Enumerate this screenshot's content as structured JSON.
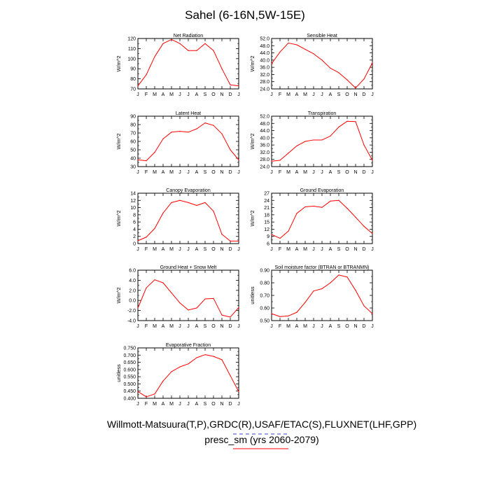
{
  "figure": {
    "title": "Sahel (6-16N,5W-15E)",
    "footer_line1": "Willmott-Matsuura(T,P),GRDC(R),USAF/ETAC(S),FLUXNET(LHF,GPP)",
    "footer_line2": "presc_sm (yrs 2060-2079)",
    "line_color": "#ff0000",
    "dash_color": "#3344cc"
  },
  "chart_data": [
    {
      "type": "line",
      "title": "Net Radiation",
      "ylabel": "W/m^2",
      "categories": [
        "J",
        "F",
        "M",
        "A",
        "M",
        "J",
        "J",
        "A",
        "S",
        "O",
        "N",
        "D",
        "J"
      ],
      "ylim": [
        70,
        120
      ],
      "yticks": [
        "70",
        "80",
        "90",
        "100",
        "110",
        "120"
      ],
      "series": [
        {
          "name": "presc_sm",
          "values": [
            73,
            84,
            102,
            115,
            119,
            115,
            108,
            108,
            115,
            108,
            90,
            74,
            73
          ]
        }
      ]
    },
    {
      "type": "line",
      "title": "Sensible Heat",
      "ylabel": "W/m^2",
      "categories": [
        "J",
        "F",
        "M",
        "A",
        "M",
        "J",
        "J",
        "A",
        "S",
        "O",
        "N",
        "D",
        "J"
      ],
      "ylim": [
        24,
        52
      ],
      "yticks": [
        "24.0",
        "28.0",
        "32.0",
        "36.0",
        "40.0",
        "44.0",
        "48.0",
        "52.0"
      ],
      "series": [
        {
          "name": "presc_sm",
          "values": [
            38,
            44.5,
            49.5,
            48.5,
            46,
            43.5,
            40,
            35.5,
            33,
            29,
            24.5,
            29.5,
            38.5
          ]
        }
      ]
    },
    {
      "type": "line",
      "title": "Latent Heat",
      "ylabel": "W/m^2",
      "categories": [
        "J",
        "F",
        "M",
        "A",
        "M",
        "J",
        "J",
        "A",
        "S",
        "O",
        "N",
        "D",
        "J"
      ],
      "ylim": [
        30,
        90
      ],
      "yticks": [
        "30",
        "40",
        "50",
        "60",
        "70",
        "80",
        "90"
      ],
      "series": [
        {
          "name": "presc_sm",
          "values": [
            38,
            37,
            47,
            63,
            71,
            72,
            71,
            75,
            82,
            79,
            69,
            50,
            38
          ]
        }
      ]
    },
    {
      "type": "line",
      "title": "Transpiration",
      "ylabel": "W/m^2",
      "categories": [
        "J",
        "F",
        "M",
        "A",
        "M",
        "J",
        "J",
        "A",
        "S",
        "O",
        "N",
        "D",
        "J"
      ],
      "ylim": [
        24,
        52
      ],
      "yticks": [
        "24.0",
        "28.0",
        "32.0",
        "36.0",
        "40.0",
        "44.0",
        "48.0",
        "52.0"
      ],
      "series": [
        {
          "name": "presc_sm",
          "values": [
            27,
            27.5,
            31.5,
            35.5,
            38,
            38.8,
            38.8,
            41,
            46,
            49.2,
            49,
            36,
            27.5
          ]
        }
      ]
    },
    {
      "type": "line",
      "title": "Canopy Evaporation",
      "ylabel": "W/m^2",
      "categories": [
        "J",
        "F",
        "M",
        "A",
        "M",
        "J",
        "J",
        "A",
        "S",
        "O",
        "N",
        "D",
        "J"
      ],
      "ylim": [
        0,
        14
      ],
      "yticks": [
        "0",
        "2",
        "4",
        "6",
        "8",
        "10",
        "12",
        "14"
      ],
      "series": [
        {
          "name": "presc_sm",
          "values": [
            0.8,
            1.8,
            4.2,
            8.5,
            11.4,
            12,
            11.4,
            10.6,
            11.4,
            9,
            2.6,
            0.7,
            0.7
          ]
        }
      ]
    },
    {
      "type": "line",
      "title": "Ground Evaporation",
      "ylabel": "W/m^2",
      "categories": [
        "J",
        "F",
        "M",
        "A",
        "M",
        "J",
        "J",
        "A",
        "S",
        "O",
        "N",
        "D",
        "J"
      ],
      "ylim": [
        6,
        27
      ],
      "yticks": [
        "6",
        "9",
        "12",
        "15",
        "18",
        "21",
        "24",
        "27"
      ],
      "series": [
        {
          "name": "presc_sm",
          "values": [
            9.8,
            8.2,
            11.2,
            18.6,
            21.3,
            21.6,
            21.1,
            23.7,
            24,
            20.7,
            17,
            13.2,
            10.2
          ]
        }
      ]
    },
    {
      "type": "line",
      "title": "Ground Heat + Snow Melt",
      "ylabel": "W/m^2",
      "categories": [
        "J",
        "F",
        "M",
        "A",
        "M",
        "J",
        "J",
        "A",
        "S",
        "O",
        "N",
        "D",
        "J"
      ],
      "ylim": [
        -4,
        6
      ],
      "yticks": [
        "-4.0",
        "-2.0",
        "0.0",
        "2.0",
        "4.0",
        "6.0"
      ],
      "series": [
        {
          "name": "presc_sm",
          "values": [
            -1.5,
            2.5,
            4.1,
            3.5,
            1.5,
            -0.5,
            -1.9,
            -1.5,
            0.3,
            0.4,
            -2.9,
            -3.3,
            -1.4
          ]
        }
      ]
    },
    {
      "type": "line",
      "title": "Soil moisture factor (BTRAN or BTRANMN)",
      "ylabel": "unitless",
      "categories": [
        "J",
        "F",
        "M",
        "A",
        "M",
        "J",
        "J",
        "A",
        "S",
        "O",
        "N",
        "D",
        "J"
      ],
      "ylim": [
        0.5,
        0.9
      ],
      "yticks": [
        "0.50",
        "0.60",
        "0.70",
        "0.80",
        "0.90"
      ],
      "series": [
        {
          "name": "presc_sm",
          "values": [
            0.555,
            0.532,
            0.537,
            0.566,
            0.645,
            0.735,
            0.753,
            0.8,
            0.862,
            0.846,
            0.74,
            0.617,
            0.555
          ]
        }
      ]
    },
    {
      "type": "line",
      "title": "Evaporative Fraction",
      "ylabel": "unitless",
      "categories": [
        "J",
        "F",
        "M",
        "A",
        "M",
        "J",
        "J",
        "A",
        "S",
        "O",
        "N",
        "D",
        "J"
      ],
      "ylim": [
        0.4,
        0.75
      ],
      "yticks": [
        "0.400",
        "0.450",
        "0.500",
        "0.550",
        "0.600",
        "0.650",
        "0.700",
        "0.750"
      ],
      "series": [
        {
          "name": "presc_sm",
          "values": [
            0.447,
            0.41,
            0.43,
            0.52,
            0.585,
            0.618,
            0.639,
            0.682,
            0.703,
            0.691,
            0.668,
            0.557,
            0.446
          ]
        }
      ]
    }
  ]
}
